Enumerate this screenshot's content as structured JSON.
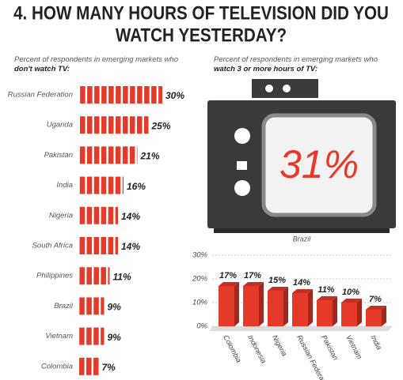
{
  "title": [
    "4. HOW MANY HOURS OF TELEVISION DID YOU",
    "WATCH YESTERDAY?"
  ],
  "chart_data": [
    {
      "type": "pictograph",
      "subtitle": [
        "Percent of respondents in emerging markets who",
        "don't watch TV:"
      ],
      "color": "#e5392a",
      "categories": [
        "Russian Federation",
        "Uganda",
        "Pakistan",
        "India",
        "Nigeria",
        "South Africa",
        "Philippines",
        "Brazil",
        "Vietnam",
        "Colombia"
      ],
      "values": [
        30,
        25,
        21,
        16,
        14,
        14,
        11,
        9,
        9,
        7
      ],
      "value_labels": [
        "30%",
        "25%",
        "21%",
        "16%",
        "14%",
        "14%",
        "11%",
        "9%",
        "9%",
        "7%"
      ]
    },
    {
      "type": "callout",
      "subtitle": [
        "Percent of respondents in emerging markets who ",
        "watch 3 or more hours of TV:"
      ],
      "value": 31,
      "value_label": "31%",
      "label": "Brazil",
      "color": "#e5392a"
    },
    {
      "type": "bar3d",
      "color": "#e5392a",
      "categories": [
        "Colombia",
        "Indonesia",
        "Nigeria",
        "Russian Federation",
        "Pakistan",
        "Vietnam",
        "India"
      ],
      "values": [
        17,
        17,
        15,
        14,
        11,
        10,
        7
      ],
      "value_labels": [
        "17%",
        "17%",
        "15%",
        "14%",
        "11%",
        "10%",
        "7%"
      ],
      "ylim": [
        0,
        30
      ],
      "yticks": [
        {
          "value": 0,
          "label": "0%"
        },
        {
          "value": 10,
          "label": "10%"
        },
        {
          "value": 20,
          "label": "20%"
        },
        {
          "value": 30,
          "label": "30%"
        }
      ],
      "grid": true
    }
  ]
}
